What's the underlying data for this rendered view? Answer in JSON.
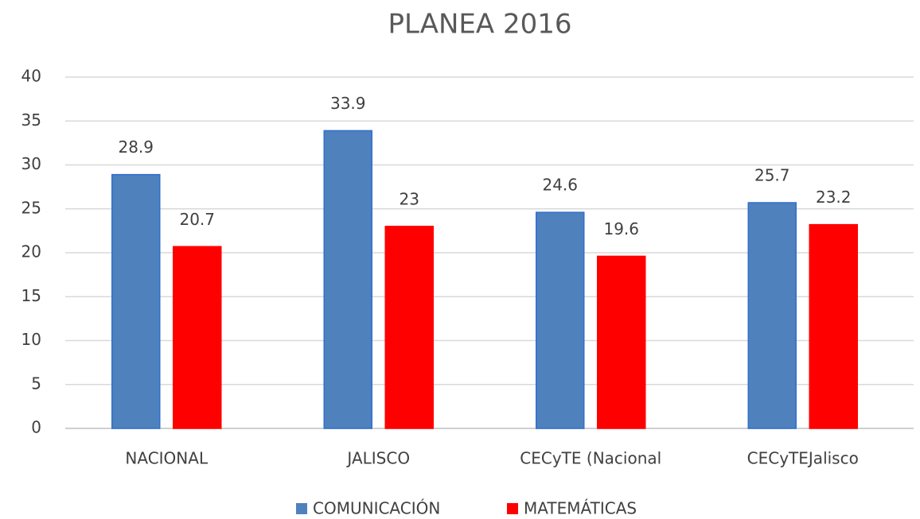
{
  "chart_data": {
    "type": "bar",
    "title": "PLANEA 2016",
    "categories": [
      "NACIONAL",
      "JALISCO",
      "CECyTE (Nacional",
      "CECyTEJalisco"
    ],
    "series": [
      {
        "name": "COMUNICACIÓN",
        "color": "#4f81bd",
        "values": [
          28.9,
          33.9,
          24.6,
          25.7
        ]
      },
      {
        "name": "MATEMÁTICAS",
        "color": "#ff0000",
        "values": [
          20.7,
          23,
          19.6,
          23.2
        ]
      }
    ],
    "ylim": [
      0,
      40
    ],
    "yticks": [
      0,
      5,
      10,
      15,
      20,
      25,
      30,
      35,
      40
    ],
    "grid": true,
    "legend": "bottom"
  }
}
